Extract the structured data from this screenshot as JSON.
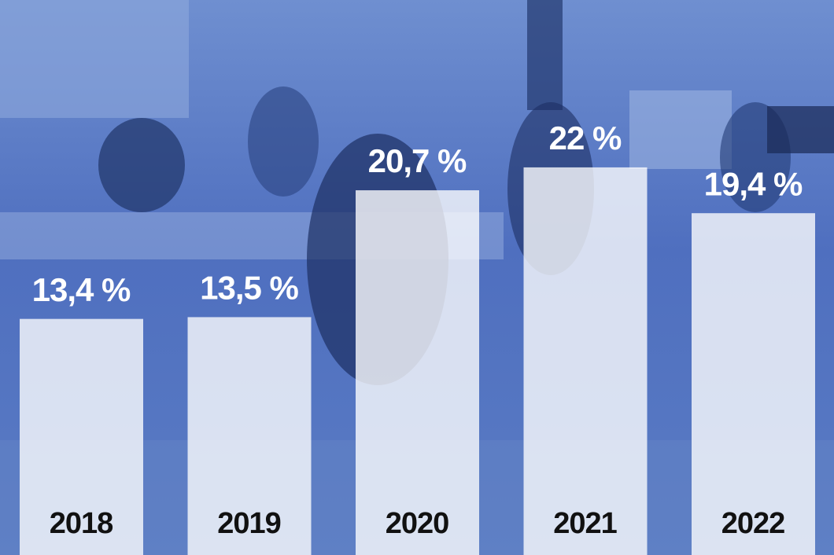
{
  "chart_data": {
    "type": "bar",
    "categories": [
      "2018",
      "2019",
      "2020",
      "2021",
      "2022"
    ],
    "values": [
      13.4,
      13.5,
      20.7,
      22,
      19.4
    ],
    "value_labels": [
      "13,4 %",
      "13,5 %",
      "20,7 %",
      "22 %",
      "19,4 %"
    ],
    "color": "#ffffff",
    "ylim": [
      0,
      31.5
    ]
  }
}
